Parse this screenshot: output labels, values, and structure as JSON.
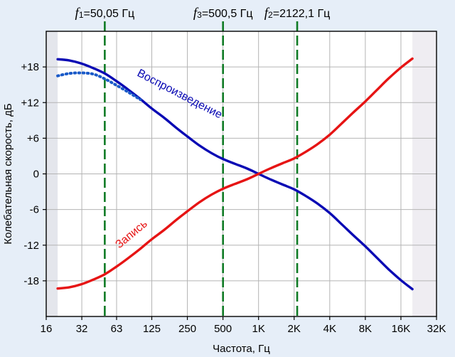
{
  "chart_data": {
    "type": "line",
    "xlabel": "Частота, Гц",
    "ylabel": "Колебательная скорость, дБ",
    "x_scale": "log2",
    "xlim": [
      16,
      32000
    ],
    "ylim": [
      -24,
      24
    ],
    "x_ticks": [
      {
        "value": 16,
        "label": "16"
      },
      {
        "value": 32,
        "label": "32"
      },
      {
        "value": 63,
        "label": "63"
      },
      {
        "value": 125,
        "label": "125"
      },
      {
        "value": 250,
        "label": "250"
      },
      {
        "value": 500,
        "label": "500"
      },
      {
        "value": 1000,
        "label": "1K"
      },
      {
        "value": 2000,
        "label": "2K"
      },
      {
        "value": 4000,
        "label": "4K"
      },
      {
        "value": 8000,
        "label": "8K"
      },
      {
        "value": 16000,
        "label": "16K"
      },
      {
        "value": 32000,
        "label": "32K"
      }
    ],
    "y_ticks": [
      {
        "value": 18,
        "label": "+18"
      },
      {
        "value": 12,
        "label": "+12"
      },
      {
        "value": 6,
        "label": "+6"
      },
      {
        "value": 0,
        "label": "0"
      },
      {
        "value": -6,
        "label": "-6"
      },
      {
        "value": -12,
        "label": "-12"
      },
      {
        "value": -18,
        "label": "-18"
      }
    ],
    "grid": true,
    "shaded_regions": [
      {
        "from": 16,
        "to": 20,
        "color": "#e4e6ec"
      },
      {
        "from": 20000,
        "to": 32000,
        "color": "#efedf2"
      }
    ],
    "markers": [
      {
        "symbol": "f",
        "subscript": "1",
        "text": "=50,05 Гц",
        "x": 50.05
      },
      {
        "symbol": "f",
        "subscript": "3",
        "text": "=500,5 Гц",
        "x": 500.5
      },
      {
        "symbol": "f",
        "subscript": "2",
        "text": "=2122,1 Гц",
        "x": 2122.1
      }
    ],
    "series": [
      {
        "name": "Воспроизведение",
        "color": "#0a0ab4",
        "x": [
          20,
          25,
          31.5,
          40,
          50,
          63,
          80,
          100,
          125,
          160,
          200,
          250,
          315,
          400,
          500,
          630,
          800,
          1000,
          1250,
          1600,
          2000,
          2500,
          3150,
          4000,
          5000,
          6300,
          8000,
          10000,
          12500,
          16000,
          20000
        ],
        "y": [
          19.3,
          19.1,
          18.6,
          17.8,
          16.9,
          15.6,
          14.1,
          12.6,
          11.0,
          9.4,
          7.8,
          6.3,
          4.8,
          3.5,
          2.5,
          1.7,
          0.9,
          0.0,
          -0.9,
          -1.8,
          -2.6,
          -3.7,
          -5.0,
          -6.6,
          -8.4,
          -10.3,
          -12.2,
          -14.1,
          -16.0,
          -17.9,
          -19.4
        ]
      },
      {
        "name": "",
        "style": "dotted",
        "color": "#1a5ac8",
        "x": [
          20,
          25,
          31.5,
          40,
          50,
          63,
          80,
          100
        ],
        "y": [
          16.5,
          16.9,
          17.0,
          16.8,
          16.0,
          14.9,
          13.7,
          12.5
        ]
      },
      {
        "name": "Запись",
        "color": "#e61414",
        "x": [
          20,
          25,
          31.5,
          40,
          50,
          63,
          80,
          100,
          125,
          160,
          200,
          250,
          315,
          400,
          500,
          630,
          800,
          1000,
          1250,
          1600,
          2000,
          2500,
          3150,
          4000,
          5000,
          6300,
          8000,
          10000,
          12500,
          16000,
          20000
        ],
        "y": [
          -19.3,
          -19.1,
          -18.6,
          -17.8,
          -16.9,
          -15.6,
          -14.1,
          -12.6,
          -11.0,
          -9.4,
          -7.8,
          -6.3,
          -4.8,
          -3.5,
          -2.5,
          -1.7,
          -0.9,
          0.0,
          0.9,
          1.8,
          2.6,
          3.7,
          5.0,
          6.6,
          8.4,
          10.3,
          12.2,
          14.1,
          16.0,
          17.9,
          19.4
        ]
      }
    ],
    "annotations": [
      {
        "text": "Воспроизведение",
        "series": 0,
        "at_x": 470,
        "at_y": 9.3
      },
      {
        "text": "Запись",
        "series": 2,
        "at_x": 116,
        "at_y": -8.6
      }
    ]
  }
}
